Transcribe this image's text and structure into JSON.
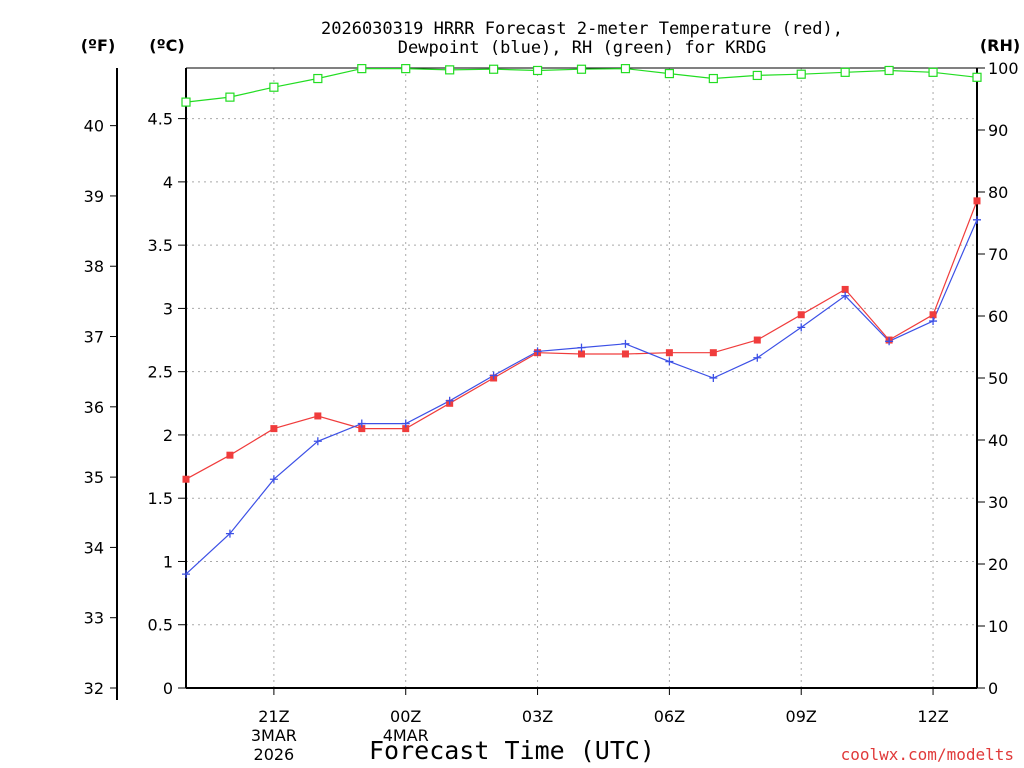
{
  "chart_data": {
    "type": "line",
    "title_line1": "2026030319 HRRR Forecast 2-meter Temperature (red),",
    "title_line2": "Dewpoint (blue), RH (green) for KRDG",
    "xlabel": "Forecast Time (UTC)",
    "credit": "coolwx.com/modelts",
    "units": {
      "fahrenheit": "(ºF)",
      "celsius": "(ºC)",
      "rh": "(RH)"
    },
    "x_hours": [
      0,
      1,
      2,
      3,
      4,
      5,
      6,
      7,
      8,
      9,
      10,
      11,
      12,
      13,
      14,
      15,
      16,
      17,
      18
    ],
    "xlim": [
      0,
      18
    ],
    "x_ticks": [
      {
        "hour": 2,
        "label": "21Z",
        "date1": "3MAR",
        "date2": "2026"
      },
      {
        "hour": 5,
        "label": "00Z",
        "date1": "4MAR",
        "date2": ""
      },
      {
        "hour": 8,
        "label": "03Z",
        "date1": "",
        "date2": ""
      },
      {
        "hour": 11,
        "label": "06Z",
        "date1": "",
        "date2": ""
      },
      {
        "hour": 14,
        "label": "09Z",
        "date1": "",
        "date2": ""
      },
      {
        "hour": 17,
        "label": "12Z",
        "date1": "",
        "date2": ""
      }
    ],
    "celsius_axis": {
      "ylim": [
        0,
        4.9
      ],
      "ticks": [
        0,
        0.5,
        1,
        1.5,
        2,
        2.5,
        3,
        3.5,
        4,
        4.5
      ],
      "tick_labels": [
        "0",
        "0.5",
        "1",
        "1.5",
        "2",
        "2.5",
        "3",
        "3.5",
        "4",
        "4.5"
      ]
    },
    "fahrenheit_axis": {
      "ticks": [
        32,
        33,
        34,
        35,
        36,
        37,
        38,
        39,
        40
      ],
      "tick_labels": [
        "32",
        "33",
        "34",
        "35",
        "36",
        "37",
        "38",
        "39",
        "40"
      ]
    },
    "rh_axis": {
      "ylim": [
        0,
        100
      ],
      "ticks": [
        0,
        10,
        20,
        30,
        40,
        50,
        60,
        70,
        80,
        90,
        100
      ],
      "tick_labels": [
        "0",
        "10",
        "20",
        "30",
        "40",
        "50",
        "60",
        "70",
        "80",
        "90",
        "100"
      ]
    },
    "series": [
      {
        "name": "Temperature",
        "unit": "C",
        "color": "#f03c3c",
        "marker": "filled-square",
        "values": [
          1.65,
          1.84,
          2.05,
          2.15,
          2.05,
          2.05,
          2.25,
          2.45,
          2.65,
          2.64,
          2.64,
          2.65,
          2.65,
          2.75,
          2.95,
          3.15,
          2.75,
          2.95,
          3.85
        ]
      },
      {
        "name": "Dewpoint",
        "unit": "C",
        "color": "#3c50e6",
        "marker": "plus",
        "values": [
          0.9,
          1.22,
          1.65,
          1.95,
          2.09,
          2.09,
          2.27,
          2.47,
          2.66,
          2.69,
          2.72,
          2.58,
          2.45,
          2.61,
          2.85,
          3.1,
          2.74,
          2.9,
          3.7
        ]
      },
      {
        "name": "RH",
        "unit": "%",
        "color": "#22dd22",
        "marker": "open-square",
        "values": [
          94.5,
          95.3,
          96.9,
          98.3,
          99.9,
          99.9,
          99.7,
          99.8,
          99.6,
          99.8,
          99.9,
          99.1,
          98.3,
          98.8,
          99.0,
          99.3,
          99.6,
          99.3,
          98.5
        ]
      }
    ]
  }
}
